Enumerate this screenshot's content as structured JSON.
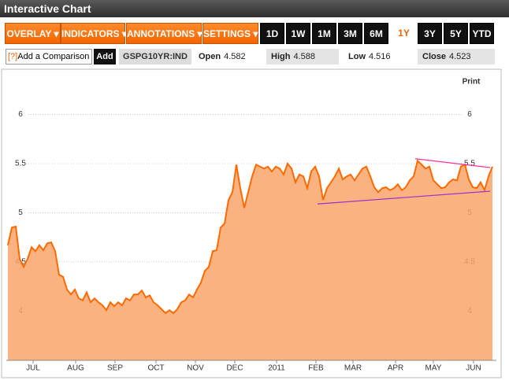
{
  "header": {
    "title": "Interactive Chart"
  },
  "toolbar": {
    "menus": [
      "OVERLAY",
      "INDICATORS",
      "ANNOTATIONS",
      "SETTINGS"
    ],
    "ranges": [
      "1D",
      "1W",
      "1M",
      "3M",
      "6M",
      "1Y",
      "3Y",
      "5Y",
      "YTD"
    ],
    "selected": "1Y"
  },
  "comparison": {
    "help": "[?]",
    "placeholder": "Add a Comparison",
    "button": "Add"
  },
  "quote": {
    "symbol": "GSPG10YR:IND",
    "fields": [
      {
        "label": "Open",
        "value": 4.582
      },
      {
        "label": "High",
        "value": 4.588
      },
      {
        "label": "Low",
        "value": 4.516
      },
      {
        "label": "Close",
        "value": 4.523
      }
    ]
  },
  "print_link": "Print",
  "chart_data": {
    "type": "area",
    "color": "#ff6a00",
    "fill_color": "#f9a46a",
    "values": [
      4.67,
      4.85,
      4.86,
      4.53,
      4.45,
      4.53,
      4.65,
      4.61,
      4.67,
      4.62,
      4.69,
      4.7,
      4.61,
      4.37,
      4.35,
      4.22,
      4.17,
      4.22,
      4.13,
      4.11,
      4.19,
      4.09,
      4.13,
      4.09,
      4.06,
      4.01,
      4.09,
      4.05,
      4.09,
      4.06,
      4.13,
      4.11,
      4.17,
      4.17,
      4.21,
      4.14,
      4.16,
      4.09,
      4.06,
      4.02,
      3.98,
      4.01,
      3.98,
      4.02,
      4.09,
      4.11,
      4.17,
      4.14,
      4.22,
      4.29,
      4.41,
      4.45,
      4.61,
      4.62,
      4.85,
      4.89,
      5.13,
      5.21,
      5.49,
      5.25,
      5.05,
      5.21,
      5.37,
      5.49,
      5.47,
      5.45,
      5.47,
      5.42,
      5.47,
      5.45,
      5.39,
      5.5,
      5.45,
      5.31,
      5.39,
      5.37,
      5.25,
      5.42,
      5.47,
      5.37,
      5.13,
      5.25,
      5.31,
      5.37,
      5.45,
      5.34,
      5.37,
      5.39,
      5.33,
      5.39,
      5.45,
      5.47,
      5.37,
      5.26,
      5.21,
      5.25,
      5.26,
      5.23,
      5.25,
      5.29,
      5.23,
      5.26,
      5.33,
      5.37,
      5.53,
      5.49,
      5.45,
      5.47,
      5.33,
      5.29,
      5.25,
      5.26,
      5.31,
      5.34,
      5.33,
      5.47,
      5.49,
      5.34,
      5.26,
      5.25,
      5.31,
      5.23,
      5.37,
      5.47
    ],
    "xlim": [
      0,
      123
    ],
    "xticks": [
      {
        "value": 6.4,
        "label": "JUL"
      },
      {
        "value": 17.2,
        "label": "AUG"
      },
      {
        "value": 27.2,
        "label": "SEP"
      },
      {
        "value": 37.6,
        "label": "OCT"
      },
      {
        "value": 47.6,
        "label": "NOV"
      },
      {
        "value": 57.6,
        "label": "DEC"
      },
      {
        "value": 68.2,
        "label": "2011"
      },
      {
        "value": 78.2,
        "label": "FEB"
      },
      {
        "value": 87.6,
        "label": "MAR"
      },
      {
        "value": 98.4,
        "label": "APR"
      },
      {
        "value": 108,
        "label": "MAY"
      },
      {
        "value": 118.2,
        "label": "JUN"
      }
    ],
    "ylim": [
      3.5,
      6.4
    ],
    "yticks": [
      4,
      4.5,
      5,
      5.5,
      6
    ],
    "grid": true,
    "trendlines": [
      {
        "color": "#9933cc",
        "x": [
          78.6,
          122.4
        ],
        "y": [
          5.09,
          5.22
        ]
      },
      {
        "color": "#ff3399",
        "x": [
          103.4,
          122.4
        ],
        "y": [
          5.55,
          5.46
        ]
      }
    ]
  }
}
